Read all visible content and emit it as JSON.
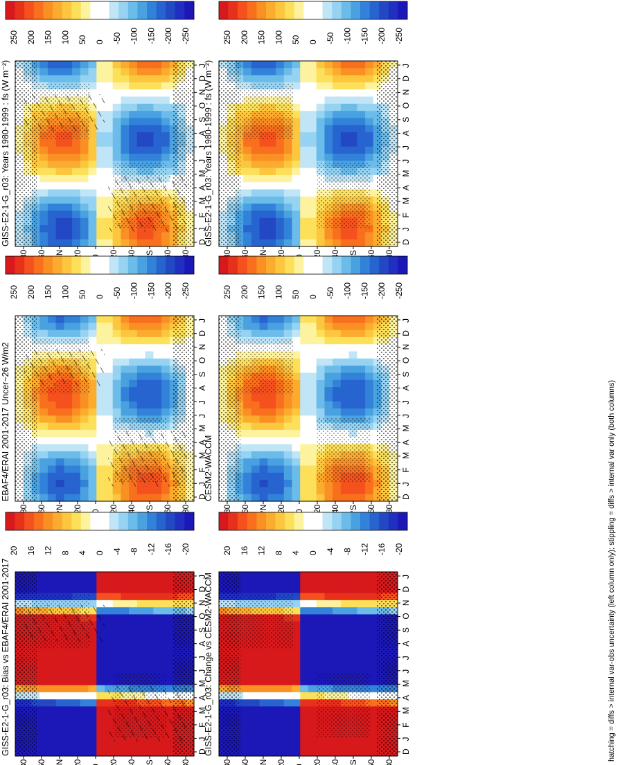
{
  "figure": {
    "footnote": "hatching = diffs > internal var-obs uncertainty (left column only); stippling = diffs > internal var only (both columns)"
  },
  "colors": {
    "flux_palette": [
      "#d7191c",
      "#e8311b",
      "#f4511e",
      "#f86f1e",
      "#fa8f23",
      "#fbac2e",
      "#fcc63f",
      "#fde05a",
      "#fdf29e",
      "#ffffff",
      "#ffffff",
      "#bfe5f7",
      "#96d3f2",
      "#6cbcea",
      "#4aa1e0",
      "#3182d8",
      "#2764cf",
      "#2248c4",
      "#1f2fbf",
      "#1c18b8"
    ],
    "diff_palette": [
      "#d7191c",
      "#e8311b",
      "#f4511e",
      "#f86f1e",
      "#fa8f23",
      "#fbac2e",
      "#fcc63f",
      "#fde05a",
      "#fdf29e",
      "#ffffff",
      "#ffffff",
      "#bfe5f7",
      "#96d3f2",
      "#6cbcea",
      "#4aa1e0",
      "#3182d8",
      "#2764cf",
      "#2248c4",
      "#1f2fbf",
      "#1c18b8"
    ]
  },
  "chart_data": [
    {
      "type": "heatmap",
      "panel": "left-top",
      "title": "GISS-E2-1-G_r03: Years 1980-1999 : fs (W m⁻²)",
      "x_ticks": [
        "D",
        "J",
        "F",
        "M",
        "A",
        "M",
        "J",
        "J",
        "A",
        "S",
        "O",
        "N",
        "D",
        "J"
      ],
      "y_ticks": [
        "80",
        "60",
        "°N",
        "20",
        "0",
        "20",
        "40",
        "°S",
        "60",
        "80"
      ],
      "colorbar_ticks": [
        "250",
        "200",
        "150",
        "100",
        "50",
        "0",
        "-50",
        "-100",
        "-150",
        "-200",
        "-250"
      ],
      "field": "seasonal_flux",
      "hatching": true,
      "stippling": true
    },
    {
      "type": "heatmap",
      "panel": "right-top",
      "title": "GISS-E2-1-G_r03: Years 1980-1999 : fs (W m⁻²)",
      "x_ticks": [
        "D",
        "J",
        "F",
        "M",
        "A",
        "M",
        "J",
        "J",
        "A",
        "S",
        "O",
        "N",
        "D",
        "J"
      ],
      "y_ticks": [
        "80",
        "60",
        "°N",
        "20",
        "0",
        "20",
        "40",
        "°S",
        "60",
        "80"
      ],
      "colorbar_ticks": [
        "250",
        "200",
        "150",
        "100",
        "50",
        "0",
        "-50",
        "-100",
        "-150",
        "-200",
        "-250"
      ],
      "field": "seasonal_flux",
      "hatching": false,
      "stippling": true
    },
    {
      "type": "heatmap",
      "panel": "left-middle",
      "title": "EBAF4/ERAI 2001-2017 Uncer~26 W/m2",
      "x_ticks": [
        "D",
        "J",
        "F",
        "M",
        "A",
        "M",
        "J",
        "J",
        "A",
        "S",
        "O",
        "N",
        "D",
        "J"
      ],
      "y_ticks": [
        "80",
        "60",
        "°N",
        "20",
        "0",
        "20",
        "40",
        "°S",
        "60",
        "80"
      ],
      "colorbar_ticks": [
        "250",
        "200",
        "150",
        "100",
        "50",
        "0",
        "-50",
        "-100",
        "-150",
        "-200",
        "-250"
      ],
      "field": "seasonal_flux_obs",
      "hatching": true,
      "stippling": true
    },
    {
      "type": "heatmap",
      "panel": "right-middle",
      "title": "CESM2-WACCM",
      "x_ticks": [
        "D",
        "J",
        "F",
        "M",
        "A",
        "M",
        "J",
        "J",
        "A",
        "S",
        "O",
        "N",
        "D",
        "J"
      ],
      "y_ticks": [
        "80",
        "60",
        "°N",
        "20",
        "0",
        "20",
        "40",
        "°S",
        "60",
        "80"
      ],
      "colorbar_ticks": [
        "250",
        "200",
        "150",
        "100",
        "50",
        "0",
        "-50",
        "-100",
        "-150",
        "-200",
        "-250"
      ],
      "field": "seasonal_flux_obs",
      "hatching": false,
      "stippling": true
    },
    {
      "type": "heatmap",
      "panel": "left-bottom",
      "title": "GISS-E2-1-G_r03: Bias vs EBAF4/ERAI 2001-2017",
      "x_ticks": [
        "D",
        "J",
        "F",
        "M",
        "A",
        "M",
        "J",
        "J",
        "A",
        "S",
        "O",
        "N",
        "D",
        "J"
      ],
      "y_ticks": [
        "80",
        "60",
        "°N",
        "20",
        "0",
        "20",
        "40",
        "°S",
        "60",
        "80"
      ],
      "colorbar_ticks": [
        "20",
        "16",
        "12",
        "8",
        "4",
        "0",
        "-4",
        "-8",
        "-12",
        "-16",
        "-20"
      ],
      "field": "difference",
      "hatching": true,
      "stippling": true
    },
    {
      "type": "heatmap",
      "panel": "right-bottom",
      "title": "GISS-E2-1-G_r03: Change vs CESM2-WACCM",
      "x_ticks": [
        "D",
        "J",
        "F",
        "M",
        "A",
        "M",
        "J",
        "J",
        "A",
        "S",
        "O",
        "N",
        "D",
        "J"
      ],
      "y_ticks": [
        "80",
        "60",
        "°N",
        "20",
        "0",
        "20",
        "40",
        "°S",
        "60",
        "80"
      ],
      "colorbar_ticks": [
        "20",
        "16",
        "12",
        "8",
        "4",
        "0",
        "-4",
        "-8",
        "-12",
        "-16",
        "-20"
      ],
      "field": "difference",
      "hatching": false,
      "stippling": true
    }
  ]
}
